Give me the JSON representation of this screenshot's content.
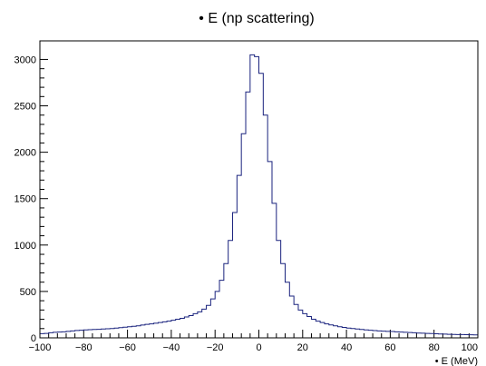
{
  "chart_data": {
    "type": "histogram",
    "title": "• E (np scattering)",
    "xlabel": "• E (MeV)",
    "ylabel": "",
    "xlim": [
      -100,
      100
    ],
    "ylim": [
      0,
      3200
    ],
    "bin_width": 2,
    "x_ticks": [
      -100,
      -80,
      -60,
      -40,
      -20,
      0,
      20,
      40,
      60,
      80,
      100
    ],
    "y_ticks": [
      0,
      500,
      1000,
      1500,
      2000,
      2500,
      3000
    ],
    "x_tick_labels": [
      "−100",
      "−80",
      "−60",
      "−40",
      "−20",
      "0",
      "20",
      "40",
      "60",
      "80",
      "100"
    ],
    "y_tick_labels": [
      "0",
      "500",
      "1000",
      "1500",
      "2000",
      "2500",
      "3000"
    ],
    "line_color": "#1a237e",
    "grid": false,
    "legend": "none",
    "bin_edges_start": -100,
    "values": [
      45,
      48,
      55,
      60,
      62,
      65,
      70,
      75,
      80,
      82,
      85,
      88,
      90,
      92,
      95,
      98,
      100,
      105,
      110,
      115,
      120,
      125,
      130,
      138,
      145,
      150,
      158,
      165,
      172,
      180,
      190,
      200,
      210,
      225,
      240,
      260,
      280,
      310,
      350,
      420,
      500,
      620,
      800,
      1050,
      1350,
      1750,
      2200,
      2650,
      3050,
      3030,
      2850,
      2400,
      1900,
      1450,
      1050,
      800,
      600,
      450,
      360,
      300,
      260,
      230,
      200,
      180,
      165,
      150,
      140,
      130,
      120,
      112,
      105,
      100,
      95,
      90,
      86,
      82,
      78,
      75,
      72,
      70,
      68,
      65,
      62,
      60,
      58,
      55,
      52,
      50,
      48,
      46,
      44,
      42,
      40,
      38,
      37,
      36,
      35,
      34,
      33,
      32
    ]
  }
}
